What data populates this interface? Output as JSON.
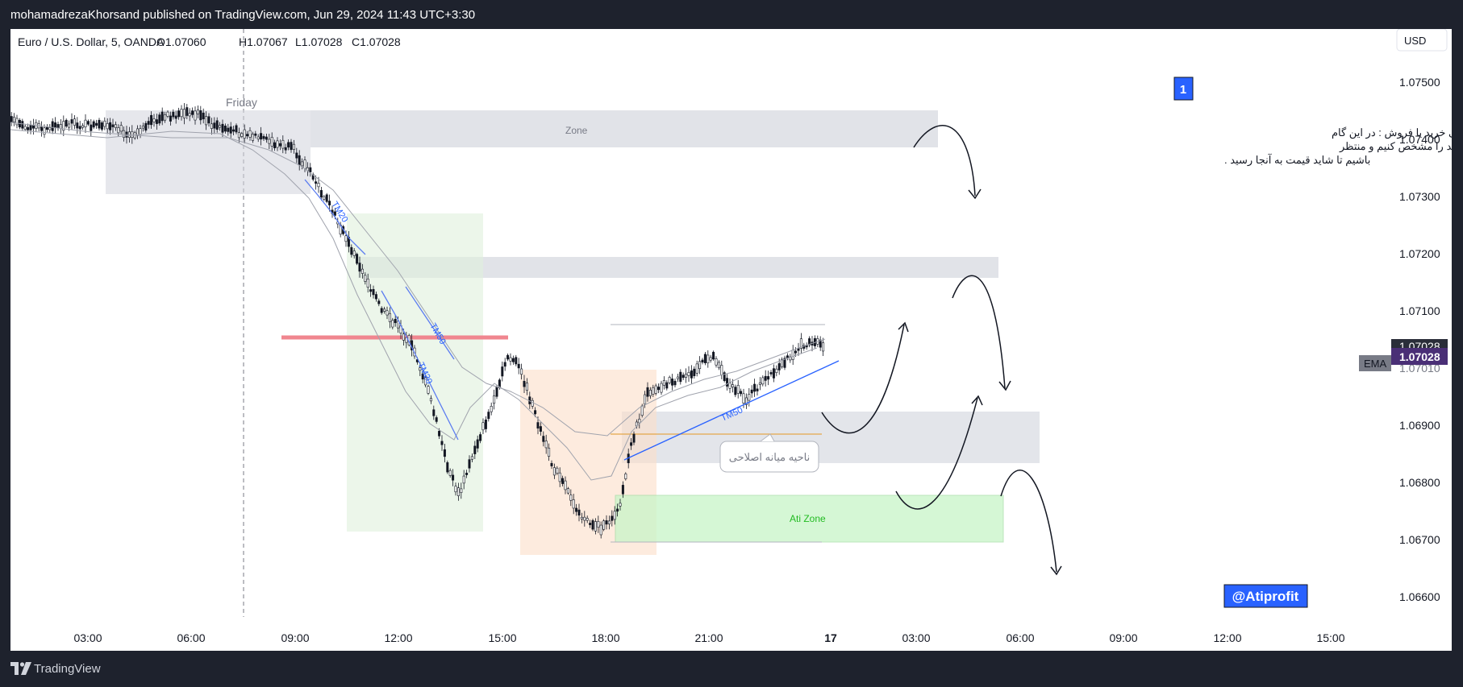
{
  "header": {
    "published_by": "mohamadrezaKhorsand published on TradingView.com, Jun 29, 2024 11:43 UTC+3:30"
  },
  "symbol": {
    "name": "Euro / U.S. Dollar, 5, OANDA",
    "open": "O1.07060",
    "high": "H1.07067",
    "low": "L1.07028",
    "close": "C1.07028"
  },
  "currency_button": "USD",
  "price_axis": {
    "ticks": [
      "1.07500",
      "1.07400",
      "1.07300",
      "1.07200",
      "1.07100",
      "1.06900",
      "1.06800",
      "1.06700",
      "1.06600"
    ],
    "current_price": "1.07028",
    "current_price_shadow": "1.07028",
    "ema_value_partial": "1.07010",
    "ema_label": "EMA"
  },
  "time_axis": {
    "ticks": [
      "03:00",
      "06:00",
      "09:00",
      "12:00",
      "15:00",
      "18:00",
      "21:00",
      "17",
      "03:00",
      "06:00",
      "09:00",
      "12:00",
      "15:00"
    ]
  },
  "session_label": "Friday",
  "annotations": {
    "zone_label": "Zone",
    "tm20_upper": "TM20",
    "tm50_upper": "TM50",
    "tm20_lower": "TM20",
    "tm50_lower": "TM50",
    "ati_zone": "Ati Zone",
    "mid_correction": "ناحیه میانه اصلاحی",
    "step_badge": "1",
    "note_line1": "مشخص کردن نواحی احتمالی خرید یا فروش : در این گام",
    "note_line2": "باید نواحی که احتمال واکنش دارند را مشخص کنیم و منتظر",
    "note_line3": "باشیم تا شاید قیمت به آنجا رسید .",
    "watermark_handle": "@Atiprofit"
  },
  "footer": {
    "brand": "TradingView"
  },
  "colors": {
    "background_dark": "#1e222d",
    "chart_bg": "#ffffff",
    "zone_gray": "#d1d4dc",
    "green_zone": "#c8f5c8",
    "resistance_red": "#f0868f",
    "trendline_blue": "#2962ff",
    "current_price_purple": "#4a2f76",
    "badge_blue": "#2962ff"
  }
}
